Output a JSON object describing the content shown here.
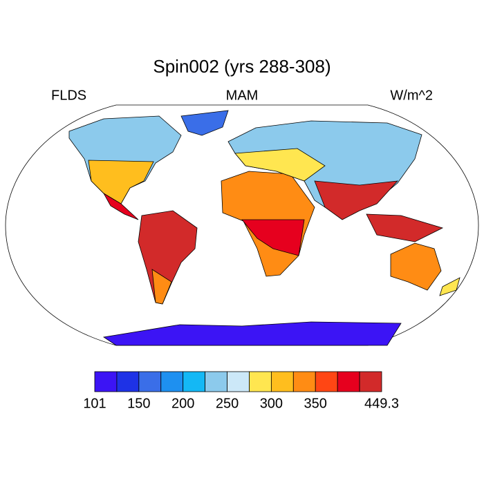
{
  "title": "Spin002 (yrs 288-308)",
  "left_label": "FLDS",
  "center_label": "MAM",
  "right_label": "W/m^2",
  "colorbar": {
    "boundaries": [
      101,
      125,
      150,
      175,
      200,
      225,
      250,
      275,
      300,
      325,
      350,
      375,
      400,
      449.3
    ],
    "colors": [
      "#3c14f5",
      "#1e32e6",
      "#3a6ee8",
      "#1e90f0",
      "#14b8f5",
      "#8ccaec",
      "#cce8f8",
      "#ffe650",
      "#ffbe1e",
      "#ff8c14",
      "#ff4614",
      "#e6001e",
      "#d22a2a"
    ],
    "ticks": [
      101,
      150,
      200,
      250,
      300,
      350,
      449.3
    ]
  }
}
